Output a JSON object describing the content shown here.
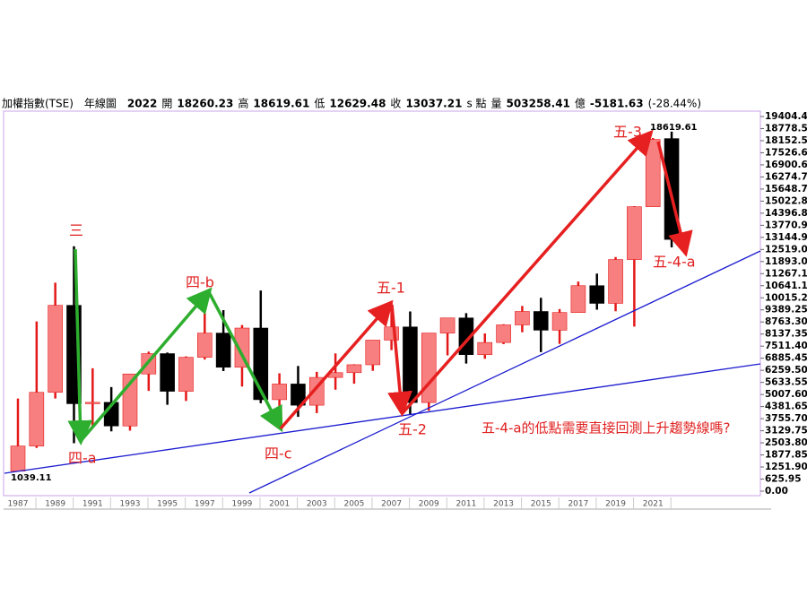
{
  "chart_data": {
    "type": "candlestick",
    "info_bar": [
      "加權指數(TSE)",
      "年線圖",
      "2022",
      "開",
      18260.23,
      "高",
      18619.61,
      "低",
      12629.48,
      "收",
      13037.21,
      "s 點",
      "量",
      503258.41,
      "億",
      -5181.63,
      "(-28.44%)"
    ],
    "x": [
      "1987",
      null,
      "1989",
      null,
      "1991",
      null,
      "1993",
      null,
      "1995",
      null,
      "1997",
      null,
      "1999",
      null,
      "2001",
      null,
      "2003",
      null,
      "2005",
      null,
      "2007",
      null,
      "2009",
      null,
      "2011",
      null,
      "2013",
      null,
      "2015",
      null,
      "2017",
      null,
      "2019",
      null,
      "2021",
      null
    ],
    "open": [
      1039,
      2339,
      5119,
      9624,
      4530,
      4600,
      3377,
      6070,
      7124,
      5173,
      6933,
      8187,
      6418,
      8448,
      4739,
      5551,
      4452,
      5890,
      6139,
      6548,
      7823,
      8506,
      4591,
      8188,
      8972,
      7072,
      7700,
      8612,
      9307,
      8338,
      9254,
      10643,
      9727,
      11997,
      14732,
      18260.23
    ],
    "high": [
      4796,
      8789,
      10800,
      12682,
      6365,
      5391,
      6070,
      7228,
      7180,
      6982,
      10256,
      9378,
      8608,
      10393,
      6104,
      6484,
      6182,
      7135,
      6575,
      7823,
      9859,
      9309,
      8188,
      8972,
      9220,
      8170,
      8647,
      9593,
      10014,
      9430,
      10855,
      11270,
      12126,
      14760,
      18291,
      18619.61
    ],
    "low": [
      1039,
      2241,
      4800,
      2485,
      3316,
      3098,
      3135,
      5194,
      4474,
      4672,
      6820,
      6219,
      5422,
      4555,
      3411,
      3850,
      4044,
      5255,
      5565,
      6232,
      7306,
      3955,
      4164,
      7032,
      6609,
      6857,
      7616,
      8230,
      7203,
      7627,
      9254,
      9400,
      9319,
      8523,
      14732,
      12629.48
    ],
    "close": [
      2339,
      5119,
      9624,
      4530,
      4600,
      3377,
      6070,
      7124,
      5173,
      6933,
      8187,
      6418,
      8448,
      4739,
      5551,
      4452,
      5890,
      6139,
      6548,
      7823,
      8506,
      4591,
      8188,
      8972,
      7072,
      7700,
      8612,
      9307,
      8338,
      9254,
      10643,
      9727,
      11997,
      14732,
      18218,
      13037.21
    ],
    "up_color": "#f77f7f",
    "up_wick_color": "#e41818",
    "down_color": "#000000",
    "ylim": [
      0,
      19404.4
    ],
    "yticks": [
      {
        "value": 0,
        "label": "0.00"
      },
      625.95,
      {
        "value": 1251.9,
        "label": "1251.90"
      },
      1877.85,
      {
        "value": 2503.8,
        "label": "2503.80"
      },
      3129.75,
      {
        "value": 3755.7,
        "label": "3755.70"
      },
      4381.65,
      {
        "value": 5007.6,
        "label": "5007.60"
      },
      5633.55,
      {
        "value": 6259.5,
        "label": "6259.50"
      },
      6885.45,
      {
        "value": 7511.4,
        "label": "7511.40"
      },
      8137.35,
      {
        "value": 8763.3,
        "label": "8763.30"
      },
      9389.25,
      10015.2,
      10641.1,
      11267.1,
      {
        "value": 11893,
        "label": "11893.0"
      },
      {
        "value": 12519,
        "label": "12519.0"
      },
      13144.9,
      13770.9,
      14396.8,
      15022.8,
      15648.7,
      16274.7,
      16900.6,
      17526.6,
      18152.5,
      18778.5,
      19404.4
    ],
    "high_label": 18619.61,
    "low_label": 1039.11,
    "annotations": [
      "三",
      "四-a",
      "四-b",
      "四-c",
      "五-1",
      "五-2",
      "五-3",
      "五-4-a",
      "五-4-a的低點需要直接回測上升趨勢線嗎?"
    ]
  }
}
